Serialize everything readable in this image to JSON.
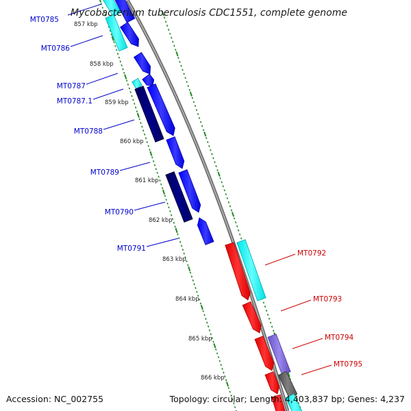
{
  "title": "Mycobacterium tuberculosis CDC1551, complete genome",
  "footer": {
    "accession": "Accession: NC_002755",
    "summary": "Topology: circular; Length: 4,403,837 bp; Genes: 4,237"
  },
  "colors": {
    "forward_label": "#0000cc",
    "reverse_label": "#cc0000",
    "ticks": "#228822",
    "backbone": "#888888",
    "blue": "#0000ff",
    "navy": "#000077",
    "cyan": "#00ffff",
    "red": "#ff0000",
    "purple": "#7f66dd",
    "gray": "#666666"
  },
  "scale": {
    "unit": "kbp",
    "labels": [
      "857 kbp",
      "858 kbp",
      "859 kbp",
      "860 kbp",
      "861 kbp",
      "862 kbp",
      "863 kbp",
      "864 kbp",
      "865 kbp",
      "866 kbp"
    ]
  },
  "genes": {
    "forward": [
      {
        "label": "MT0785",
        "color": "blue"
      },
      {
        "label": "MT0786",
        "color": "cyan"
      },
      {
        "label": "MT0787",
        "color": "blue"
      },
      {
        "label": "MT0787.1",
        "color": "cyan"
      },
      {
        "label": "MT0788",
        "color": "navy"
      },
      {
        "label": "MT0789",
        "color": "blue"
      },
      {
        "label": "MT0790",
        "color": "navy"
      },
      {
        "label": "MT0791",
        "color": "blue"
      }
    ],
    "reverse": [
      {
        "label": "MT0792",
        "color": "red"
      },
      {
        "label": "MT0793",
        "color": "red"
      },
      {
        "label": "MT0794",
        "color": "red"
      },
      {
        "label": "MT0795",
        "color": "red"
      }
    ]
  }
}
